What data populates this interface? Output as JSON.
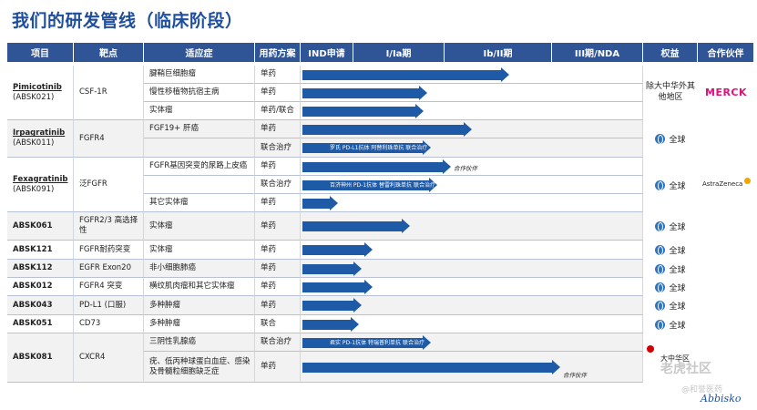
{
  "title": "我们的研发管线（临床阶段）",
  "headers": [
    "项目",
    "靶点",
    "适应症",
    "用药方案",
    "IND申请",
    "I/Ia期",
    "Ib/II期",
    "III期/NDA",
    "权益",
    "合作伙伴"
  ],
  "rows": [
    {
      "indication": "腱鞘巨细胞瘤",
      "regimen": "单药",
      "progress": 0.58
    },
    {
      "indication": "慢性移植物抗宿主病",
      "regimen": "单药",
      "progress": 0.34
    },
    {
      "indication": "实体瘤",
      "regimen": "单药/联合",
      "progress": 0.33
    },
    {
      "indication": "FGF19+ 肝癌",
      "regimen": "单药",
      "progress": 0.47
    },
    {
      "indication": "",
      "regimen": "联合治疗",
      "progress": 0.35,
      "note": "罗氏 PD-L1抗体 阿替利珠单抗 联合治疗"
    },
    {
      "indication": "FGFR基因突变的尿路上皮癌",
      "regimen": "单药",
      "progress": 0.41,
      "partner_note": "合作伙伴"
    },
    {
      "indication": "",
      "regimen": "联合治疗",
      "progress": 0.37,
      "note": "百济神州 PD-1抗体 替雷利珠单抗 联合治疗"
    },
    {
      "indication": "其它实体瘤",
      "regimen": "单药",
      "progress": 0.08
    },
    {
      "indication": "实体瘤",
      "regimen": "单药",
      "progress": 0.29
    },
    {
      "indication": "实体瘤",
      "regimen": "单药",
      "progress": 0.18
    },
    {
      "indication": "非小细胞肺癌",
      "regimen": "单药",
      "progress": 0.15
    },
    {
      "indication": "横纹肌肉瘤和其它实体瘤",
      "regimen": "单药",
      "progress": 0.18
    },
    {
      "indication": "多种肿瘤",
      "regimen": "单药",
      "progress": 0.15
    },
    {
      "indication": "多种肿瘤",
      "regimen": "联合",
      "progress": 0.14
    },
    {
      "indication": "三阴性乳腺癌",
      "regimen": "联合治疗",
      "progress": 0.35,
      "note": "君实 PD-1抗体 特瑞普利单抗 联合治疗"
    },
    {
      "indication": "疣、低丙种球蛋白血症、感染及骨髓粒细胞缺乏症",
      "regimen": "单药",
      "progress": 0.73,
      "partner_note": "合作伙伴"
    }
  ],
  "projects": [
    {
      "name": "Pimicotinib",
      "code": "(ABSK021)",
      "target": "CSF-1R",
      "rights": "除大中华外其他地区",
      "partner": "MERCK"
    },
    {
      "name": "Irpagratinib",
      "code": "(ABSK011)",
      "target": "FGFR4",
      "rights": "全球",
      "partner": ""
    },
    {
      "name": "Fexagratinib",
      "code": "(ABSK091)",
      "target": "泛FGFR",
      "rights": "全球",
      "partner": "AstraZeneca"
    },
    {
      "name": "ABSK061",
      "code": "",
      "target": "FGFR2/3 高选择性",
      "rights": "全球",
      "partner": ""
    },
    {
      "name": "ABSK121",
      "code": "",
      "target": "FGFR耐药突变",
      "rights": "全球",
      "partner": ""
    },
    {
      "name": "ABSK112",
      "code": "",
      "target": "EGFR Exon20",
      "rights": "全球",
      "partner": ""
    },
    {
      "name": "ABSK012",
      "code": "",
      "target": "FGFR4 突变",
      "rights": "全球",
      "partner": ""
    },
    {
      "name": "ABSK043",
      "code": "",
      "target": "PD-L1 (口服)",
      "rights": "全球",
      "partner": ""
    },
    {
      "name": "ABSK051",
      "code": "",
      "target": "CD73",
      "rights": "全球",
      "partner": ""
    },
    {
      "name": "ABSK081",
      "code": "",
      "target": "CXCR4",
      "rights": "大中华区",
      "partner": ""
    }
  ],
  "watermark": {
    "text1": "老虎社区",
    "text2": "@和誉医药",
    "logo": "Abbisko"
  }
}
